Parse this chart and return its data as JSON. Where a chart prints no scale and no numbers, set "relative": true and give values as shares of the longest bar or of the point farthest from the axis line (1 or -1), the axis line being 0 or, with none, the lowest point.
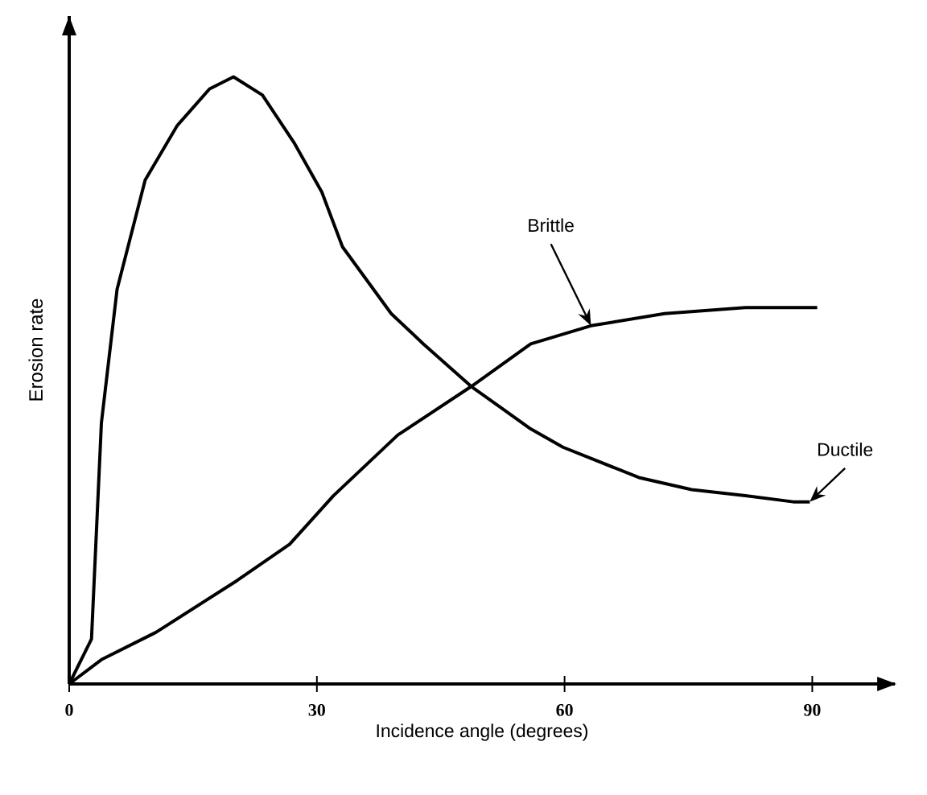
{
  "chart_data": {
    "type": "line",
    "relative": true,
    "xlabel": "Incidence angle (degrees)",
    "ylabel": "Erosion rate",
    "xlim": [
      0,
      100
    ],
    "xticks": [
      0,
      30,
      60,
      90
    ],
    "marker": "none",
    "line_style": "solid",
    "grid": false,
    "tick_labels": "x",
    "series": [
      {
        "name": "Brittle",
        "color": "#000000",
        "x": [
          0,
          3.9,
          10.5,
          20.3,
          26.7,
          32.0,
          39.8,
          48.7,
          55.9,
          63.2,
          72.1,
          81.9,
          90.6
        ],
        "values": [
          0,
          0.04,
          0.085,
          0.17,
          0.23,
          0.31,
          0.41,
          0.49,
          0.56,
          0.59,
          0.61,
          0.62,
          0.62
        ]
      },
      {
        "name": "Ductile",
        "color": "#000000",
        "x": [
          0,
          2.7,
          3.9,
          5.8,
          9.2,
          13.1,
          17.0,
          19.9,
          23.4,
          27.3,
          30.6,
          33.1,
          39.0,
          42.9,
          48.7,
          55.9,
          59.8,
          69.0,
          75.4,
          81.9,
          87.7,
          89.7
        ],
        "values": [
          0,
          0.074,
          0.43,
          0.65,
          0.83,
          0.92,
          0.98,
          1.0,
          0.97,
          0.89,
          0.81,
          0.72,
          0.61,
          0.56,
          0.49,
          0.42,
          0.39,
          0.34,
          0.32,
          0.31,
          0.3,
          0.3
        ]
      }
    ]
  }
}
